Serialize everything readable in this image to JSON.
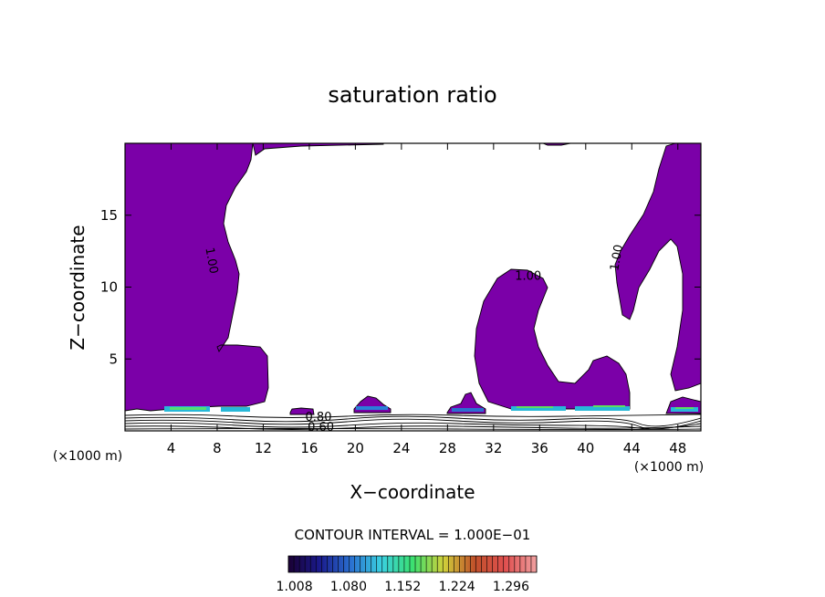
{
  "chart_data": {
    "type": "contour",
    "title": "saturation ratio",
    "xlabel": "X−coordinate",
    "ylabel": "Z−coordinate",
    "x_unit_left": "(×1000 m)",
    "x_unit_right": "(×1000 m)",
    "xlim": [
      0,
      50
    ],
    "ylim": [
      0,
      20
    ],
    "x_ticks": [
      4,
      8,
      12,
      16,
      20,
      24,
      28,
      32,
      36,
      40,
      44,
      48
    ],
    "y_ticks": [
      5,
      10,
      15
    ],
    "contour_interval_text": "CONTOUR INTERVAL = 1.000E−01",
    "contour_labels": [
      {
        "text": "1.00",
        "x": 7.2,
        "y": 11.8,
        "rotate": 80
      },
      {
        "text": "1.00",
        "x": 35.0,
        "y": 10.5,
        "rotate": 0
      },
      {
        "text": "1.00",
        "x": 43.0,
        "y": 12.0,
        "rotate": -80
      },
      {
        "text": "0.80",
        "x": 16.8,
        "y": 0.7,
        "rotate": 0
      },
      {
        "text": "0.60",
        "x": 17.0,
        "y": 0.0,
        "rotate": 0
      }
    ],
    "colorbar": {
      "labels": [
        "1.008",
        "1.080",
        "1.152",
        "1.224",
        "1.296"
      ],
      "min": 1.0,
      "max": 1.33,
      "stops": [
        "#1a0033",
        "#1a1a8c",
        "#2a6fd0",
        "#3ad0e0",
        "#3ae070",
        "#d0d03a",
        "#c0502a",
        "#e05050",
        "#f0a0a0"
      ]
    },
    "fill_color": "#7b00a8",
    "regions_saturated": [
      {
        "name": "left-region",
        "x_range": [
          0,
          12.5
        ],
        "z_range": [
          1.2,
          20
        ]
      },
      {
        "name": "upper-left-region",
        "x_range": [
          12.5,
          22.5
        ],
        "z_range": [
          19.0,
          20
        ]
      },
      {
        "name": "center-right-region",
        "x_range": [
          31,
          44
        ],
        "z_range": [
          1.2,
          11
        ]
      },
      {
        "name": "right-arm-region",
        "x_range": [
          42,
          46
        ],
        "z_range": [
          7.5,
          19
        ]
      },
      {
        "name": "right-edge-region",
        "x_range": [
          45,
          50
        ],
        "z_range": [
          1.2,
          20
        ]
      }
    ],
    "grid": false
  }
}
